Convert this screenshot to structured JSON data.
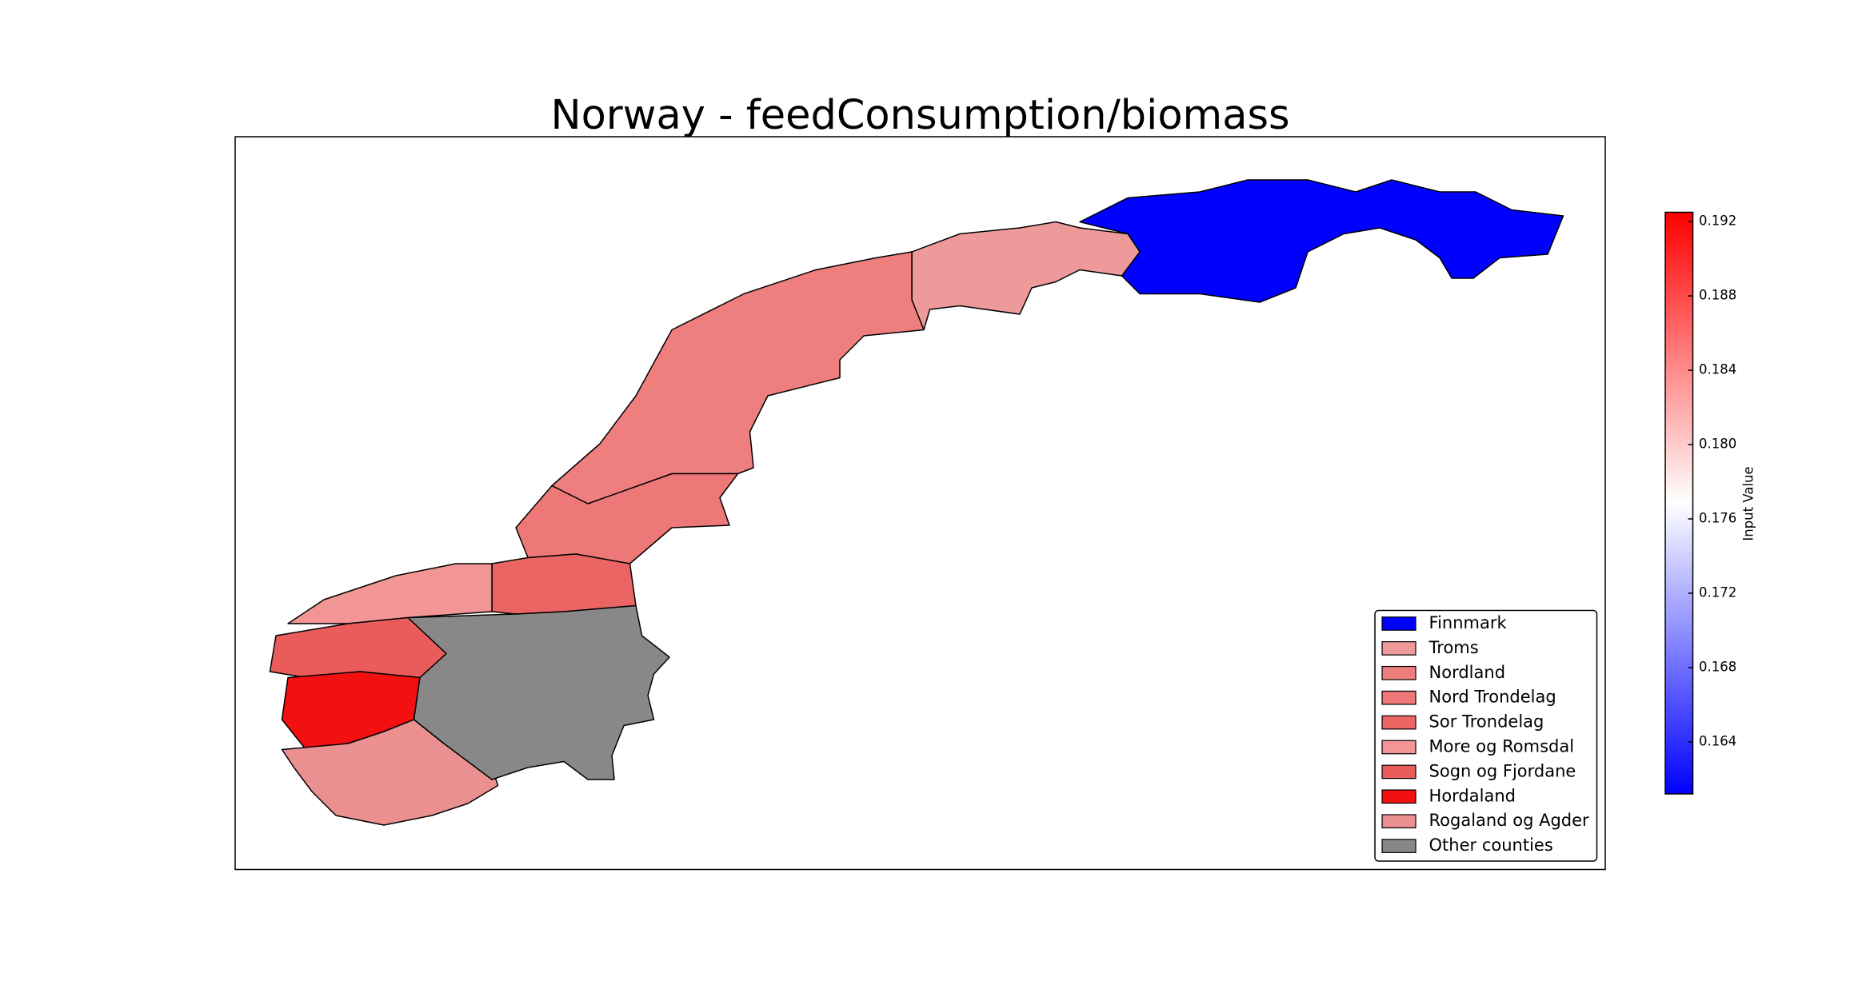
{
  "title": "Norway - feedConsumption/biomass",
  "legend": [
    {
      "label": "Finnmark",
      "color": "#0000ff"
    },
    {
      "label": "Troms",
      "color": "#ee9a9a"
    },
    {
      "label": "Nordland",
      "color": "#ef7f7f"
    },
    {
      "label": "Nord Trondelag",
      "color": "#ee7878"
    },
    {
      "label": "Sor Trondelag",
      "color": "#ec6565"
    },
    {
      "label": "More og Romsdal",
      "color": "#f29595"
    },
    {
      "label": "Sogn og Fjordane",
      "color": "#ea5c5c"
    },
    {
      "label": "Hordaland",
      "color": "#f21010"
    },
    {
      "label": "Rogaland og Agder",
      "color": "#eb9090"
    },
    {
      "label": "Other counties",
      "color": "#888888"
    }
  ],
  "colorbar": {
    "label": "Input Value",
    "lim": [
      0.1612,
      0.1925
    ],
    "ticks": [
      0.164,
      0.168,
      0.172,
      0.176,
      {
        "value": 0.18,
        "label": "0.180"
      },
      0.184,
      0.188,
      0.192
    ]
  }
}
